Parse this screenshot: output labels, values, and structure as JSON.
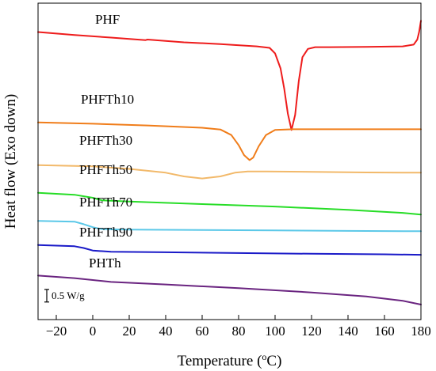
{
  "chart_data": {
    "type": "line",
    "title": "",
    "xlabel": "Temperature (°C)",
    "xlabel_parts": [
      "Temperature (",
      "o",
      "C)"
    ],
    "ylabel": "Heat flow (Exo down)",
    "xlim": [
      -30,
      180
    ],
    "xticks": [
      -20,
      0,
      20,
      40,
      60,
      80,
      100,
      120,
      140,
      160,
      180
    ],
    "xtick_labels": [
      "−20",
      "0",
      "20",
      "40",
      "60",
      "80",
      "100",
      "120",
      "140",
      "160",
      "180"
    ],
    "ylim": [
      -0.4,
      12.2
    ],
    "y_tick_labels_shown": false,
    "grid": false,
    "legend": "inline labels",
    "scale_bar": {
      "label": "0.5 W/g",
      "value": 0.5
    },
    "series": [
      {
        "name": "PHF",
        "color": "#ee1c1c",
        "x": [
          -30,
          -10,
          10,
          29,
          30,
          50,
          70,
          90,
          97,
          100,
          103,
          105,
          107,
          109,
          111,
          113,
          115,
          118,
          122,
          130,
          150,
          170,
          176,
          178,
          179,
          180
        ],
        "y": [
          11.05,
          10.93,
          10.83,
          10.73,
          10.75,
          10.64,
          10.57,
          10.48,
          10.42,
          10.2,
          9.6,
          8.8,
          7.8,
          7.15,
          7.75,
          9.1,
          10.05,
          10.38,
          10.45,
          10.45,
          10.46,
          10.48,
          10.55,
          10.75,
          11.05,
          11.5
        ]
      },
      {
        "name": "PHFTh10",
        "color": "#f07d1a",
        "x": [
          -30,
          0,
          30,
          60,
          70,
          76,
          80,
          83,
          86,
          88,
          91,
          95,
          100,
          110,
          140,
          180
        ],
        "y": [
          7.45,
          7.4,
          7.33,
          7.24,
          7.17,
          6.95,
          6.55,
          6.15,
          5.95,
          6.05,
          6.5,
          6.95,
          7.15,
          7.18,
          7.18,
          7.18
        ]
      },
      {
        "name": "PHFTh30",
        "color": "#f2b96a",
        "x": [
          -30,
          0,
          20,
          40,
          50,
          60,
          70,
          78,
          85,
          95,
          120,
          150,
          180
        ],
        "y": [
          5.75,
          5.7,
          5.6,
          5.45,
          5.3,
          5.22,
          5.3,
          5.45,
          5.5,
          5.5,
          5.48,
          5.46,
          5.45
        ]
      },
      {
        "name": "PHFTh50",
        "color": "#27dd27",
        "x": [
          -30,
          -10,
          0,
          5,
          20,
          60,
          100,
          140,
          170,
          180
        ],
        "y": [
          4.65,
          4.57,
          4.45,
          4.35,
          4.3,
          4.2,
          4.1,
          3.97,
          3.85,
          3.78
        ]
      },
      {
        "name": "PHFTh70",
        "color": "#5bc8e8",
        "x": [
          -30,
          -10,
          -5,
          0,
          5,
          20,
          60,
          100,
          140,
          180
        ],
        "y": [
          3.53,
          3.5,
          3.4,
          3.28,
          3.2,
          3.18,
          3.17,
          3.15,
          3.13,
          3.12
        ]
      },
      {
        "name": "PHFTh90",
        "color": "#1a1ac8",
        "x": [
          -30,
          -10,
          -5,
          0,
          10,
          40,
          80,
          120,
          160,
          180
        ],
        "y": [
          2.57,
          2.52,
          2.45,
          2.35,
          2.3,
          2.28,
          2.25,
          2.22,
          2.2,
          2.18
        ]
      },
      {
        "name": "PHTh",
        "color": "#6a2480",
        "x": [
          -30,
          -10,
          10,
          40,
          80,
          120,
          150,
          170,
          180
        ],
        "y": [
          1.35,
          1.25,
          1.1,
          1.0,
          0.85,
          0.68,
          0.52,
          0.35,
          0.2
        ]
      }
    ]
  }
}
